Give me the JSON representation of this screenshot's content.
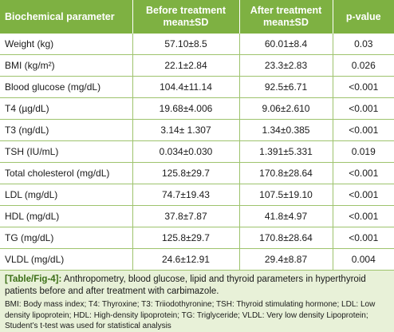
{
  "table": {
    "headers": {
      "parameter": "Biochemical parameter",
      "before_line1": "Before treatment",
      "before_line2": "mean±SD",
      "after_line1": "After treatment",
      "after_line2": "mean±SD",
      "pvalue": "p-value"
    },
    "rows": [
      {
        "parameter": "Weight (kg)",
        "before": "57.10±8.5",
        "after": "60.01±8.4",
        "p": "0.03"
      },
      {
        "parameter": "BMI (kg/m²)",
        "before": "22.1±2.84",
        "after": "23.3±2.83",
        "p": "0.026"
      },
      {
        "parameter": "Blood glucose (mg/dL)",
        "before": "104.4±11.14",
        "after": "92.5±6.71",
        "p": "<0.001"
      },
      {
        "parameter": "T4 (µg/dL)",
        "before": "19.68±4.006",
        "after": "9.06±2.610",
        "p": "<0.001"
      },
      {
        "parameter": "T3 (ng/dL)",
        "before": "3.14± 1.307",
        "after": "1.34±0.385",
        "p": "<0.001"
      },
      {
        "parameter": "TSH (IU/mL)",
        "before": "0.034±0.030",
        "after": "1.391±5.331",
        "p": "0.019"
      },
      {
        "parameter": "Total cholesterol (mg/dL)",
        "before": "125.8±29.7",
        "after": "170.8±28.64",
        "p": "<0.001"
      },
      {
        "parameter": "LDL (mg/dL)",
        "before": "74.7±19.43",
        "after": "107.5±19.10",
        "p": "<0.001"
      },
      {
        "parameter": "HDL (mg/dL)",
        "before": "37.8±7.87",
        "after": "41.8±4.97",
        "p": "<0.001"
      },
      {
        "parameter": "TG (mg/dL)",
        "before": "125.8±29.7",
        "after": "170.8±28.64",
        "p": "<0.001"
      },
      {
        "parameter": "VLDL (mg/dL)",
        "before": "24.6±12.91",
        "after": "29.4±8.87",
        "p": "0.004"
      }
    ]
  },
  "caption": {
    "ref": "[Table/Fig-4]:",
    "text": " Anthropometry, blood glucose, lipid and thyroid parameters in hyperthyroid patients before and after treatment with carbimazole."
  },
  "footnote": "BMI: Body mass index; T4: Thyroxine; T3: Triiodothyronine; TSH: Thyroid stimulating hormone; LDL: Low density lipoprotein; HDL: High-density lipoprotein; TG: Triglyceride; VLDL: Very low density Lipoprotein; Student’s t-test was used for statistical analysis",
  "colors": {
    "header_bg": "#7eb142",
    "caption_bg": "#e8f1d8",
    "ref_text": "#3b6e17"
  }
}
